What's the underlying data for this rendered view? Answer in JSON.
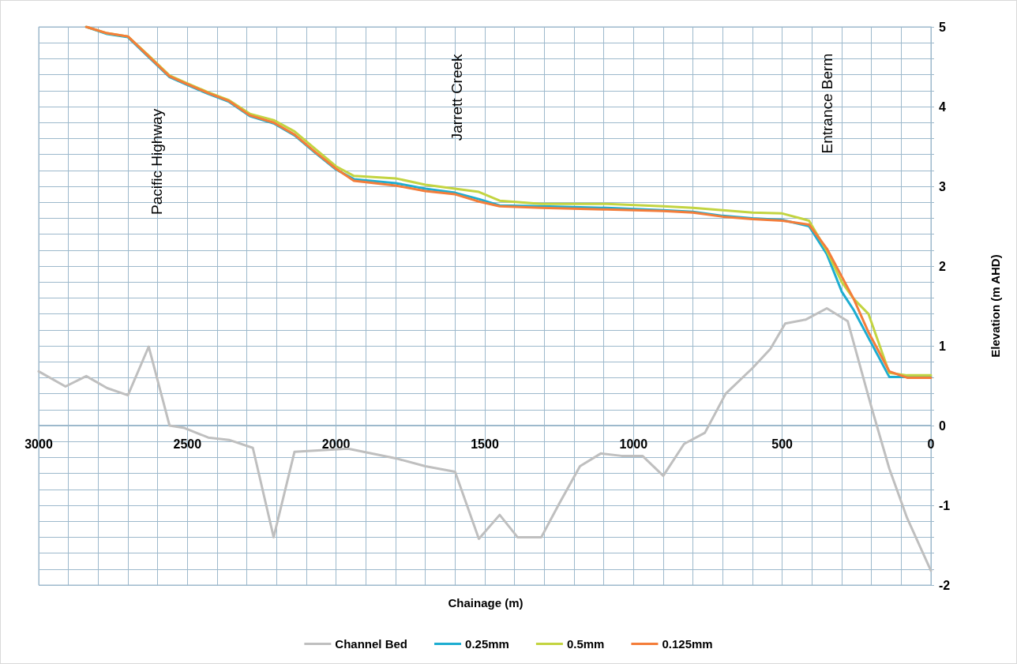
{
  "chart_data": {
    "type": "line",
    "xlabel": "Chainage (m)",
    "ylabel": "Elevation (m AHD)",
    "xlim": [
      3000,
      0
    ],
    "ylim": [
      -2,
      5
    ],
    "xticks": [
      3000,
      {
        "value": 2900,
        "label": null
      },
      {
        "value": 2800,
        "label": null
      },
      {
        "value": 2700,
        "label": null
      },
      {
        "value": 2600,
        "label": null
      },
      2500,
      {
        "value": 2400,
        "label": null
      },
      {
        "value": 2300,
        "label": null
      },
      {
        "value": 2200,
        "label": null
      },
      {
        "value": 2100,
        "label": null
      },
      2000,
      {
        "value": 1900,
        "label": null
      },
      {
        "value": 1800,
        "label": null
      },
      {
        "value": 1700,
        "label": null
      },
      {
        "value": 1600,
        "label": null
      },
      1500,
      {
        "value": 1400,
        "label": null
      },
      {
        "value": 1300,
        "label": null
      },
      {
        "value": 1200,
        "label": null
      },
      {
        "value": 1100,
        "label": null
      },
      1000,
      {
        "value": 900,
        "label": null
      },
      {
        "value": 800,
        "label": null
      },
      {
        "value": 700,
        "label": null
      },
      {
        "value": 600,
        "label": null
      },
      500,
      {
        "value": 400,
        "label": null
      },
      {
        "value": 300,
        "label": null
      },
      {
        "value": 200,
        "label": null
      },
      {
        "value": 100,
        "label": null
      },
      0
    ],
    "yticks": [
      -2,
      {
        "value": -1.8,
        "label": null
      },
      {
        "value": -1.6,
        "label": null
      },
      {
        "value": -1.4,
        "label": null
      },
      {
        "value": -1.2,
        "label": null
      },
      -1,
      {
        "value": -0.8,
        "label": null
      },
      {
        "value": -0.6,
        "label": null
      },
      {
        "value": -0.4,
        "label": null
      },
      {
        "value": -0.2,
        "label": null
      },
      0,
      {
        "value": 0.2,
        "label": null
      },
      {
        "value": 0.4,
        "label": null
      },
      {
        "value": 0.6,
        "label": null
      },
      {
        "value": 0.8,
        "label": null
      },
      1,
      {
        "value": 1.2,
        "label": null
      },
      {
        "value": 1.4,
        "label": null
      },
      {
        "value": 1.6,
        "label": null
      },
      {
        "value": 1.8,
        "label": null
      },
      2,
      {
        "value": 2.2,
        "label": null
      },
      {
        "value": 2.4,
        "label": null
      },
      {
        "value": 2.6,
        "label": null
      },
      {
        "value": 2.8,
        "label": null
      },
      3,
      {
        "value": 3.2,
        "label": null
      },
      {
        "value": 3.4,
        "label": null
      },
      {
        "value": 3.6,
        "label": null
      },
      {
        "value": 3.8,
        "label": null
      },
      4,
      {
        "value": 4.2,
        "label": null
      },
      {
        "value": 4.4,
        "label": null
      },
      {
        "value": 4.6,
        "label": null
      },
      {
        "value": 4.8,
        "label": null
      },
      5
    ],
    "grid": true,
    "legend": "bottom",
    "marker": "none",
    "line_style": "solid",
    "annotations": [
      "Pacific Highway",
      "Jarrett Creek",
      "Entrance Berm"
    ],
    "series": [
      {
        "name": "Channel Bed",
        "color": "#bfbfbf",
        "x": [
          3000,
          2910,
          2840,
          2770,
          2700,
          2630,
          2560,
          2510,
          2430,
          2360,
          2280,
          2210,
          2140,
          1960,
          1800,
          1700,
          1600,
          1520,
          1450,
          1390,
          1310,
          1250,
          1180,
          1110,
          1040,
          970,
          900,
          830,
          760,
          690,
          600,
          540,
          490,
          420,
          350,
          280,
          200,
          140,
          80,
          0
        ],
        "values": [
          0.68,
          0.49,
          0.62,
          0.47,
          0.38,
          0.99,
          0.0,
          -0.03,
          -0.15,
          -0.18,
          -0.28,
          -1.4,
          -0.33,
          -0.29,
          -0.41,
          -0.51,
          -0.58,
          -1.42,
          -1.12,
          -1.4,
          -1.4,
          -0.98,
          -0.51,
          -0.35,
          -0.38,
          -0.38,
          -0.63,
          -0.23,
          -0.09,
          0.4,
          0.72,
          0.96,
          1.28,
          1.33,
          1.47,
          1.31,
          0.23,
          -0.54,
          -1.16,
          -1.82
        ]
      },
      {
        "name": "0.25mm",
        "color": "#1eadd1",
        "x": [
          2840,
          2770,
          2700,
          2630,
          2560,
          2500,
          2430,
          2360,
          2290,
          2210,
          2140,
          2070,
          2000,
          1940,
          1800,
          1700,
          1600,
          1520,
          1450,
          1310,
          1090,
          900,
          800,
          700,
          600,
          500,
          410,
          350,
          300,
          260,
          210,
          140,
          80,
          0
        ],
        "values": [
          5.0,
          4.91,
          4.87,
          4.62,
          4.37,
          4.27,
          4.16,
          4.06,
          3.88,
          3.79,
          3.64,
          3.42,
          3.21,
          3.09,
          3.04,
          2.97,
          2.92,
          2.84,
          2.76,
          2.75,
          2.73,
          2.7,
          2.68,
          2.63,
          2.6,
          2.58,
          2.5,
          2.15,
          1.68,
          1.45,
          1.1,
          0.61,
          0.61,
          0.61
        ]
      },
      {
        "name": "0.5mm",
        "color": "#c3d441",
        "x": [
          2840,
          2770,
          2700,
          2630,
          2560,
          2500,
          2430,
          2360,
          2290,
          2210,
          2140,
          2070,
          2000,
          1940,
          1800,
          1700,
          1600,
          1520,
          1450,
          1310,
          1090,
          900,
          800,
          700,
          600,
          500,
          410,
          350,
          300,
          260,
          210,
          140,
          80,
          0
        ],
        "values": [
          5.0,
          4.92,
          4.88,
          4.64,
          4.39,
          4.29,
          4.18,
          4.08,
          3.91,
          3.83,
          3.69,
          3.47,
          3.25,
          3.13,
          3.1,
          3.02,
          2.97,
          2.93,
          2.82,
          2.78,
          2.78,
          2.75,
          2.73,
          2.7,
          2.67,
          2.66,
          2.57,
          2.19,
          1.8,
          1.59,
          1.4,
          0.66,
          0.63,
          0.63
        ]
      },
      {
        "name": "0.125mm",
        "color": "#f47d3a",
        "x": [
          2840,
          2770,
          2700,
          2630,
          2560,
          2500,
          2430,
          2360,
          2290,
          2210,
          2140,
          2070,
          2000,
          1940,
          1800,
          1700,
          1600,
          1520,
          1450,
          1310,
          1090,
          900,
          800,
          700,
          600,
          500,
          410,
          350,
          300,
          260,
          210,
          140,
          80,
          0
        ],
        "values": [
          5.0,
          4.92,
          4.88,
          4.63,
          4.38,
          4.28,
          4.17,
          4.07,
          3.89,
          3.8,
          3.65,
          3.43,
          3.22,
          3.07,
          3.01,
          2.94,
          2.9,
          2.81,
          2.75,
          2.73,
          2.71,
          2.69,
          2.67,
          2.62,
          2.59,
          2.57,
          2.52,
          2.22,
          1.87,
          1.59,
          1.17,
          0.68,
          0.6,
          0.6
        ]
      }
    ]
  }
}
